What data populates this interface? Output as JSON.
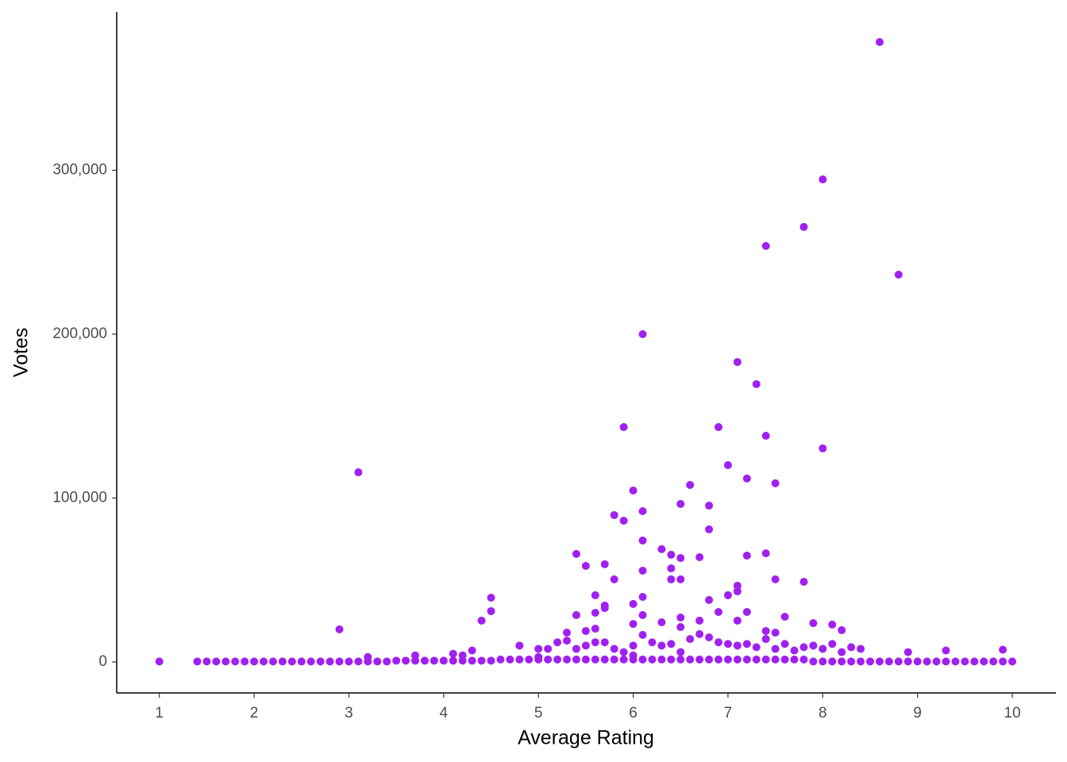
{
  "chart_data": {
    "type": "scatter",
    "xlabel": "Average Rating",
    "ylabel": "Votes",
    "color": "#a020f0",
    "xlim": [
      0.55,
      10.46
    ],
    "ylim": [
      -18900,
      396600
    ],
    "xticks": [
      1,
      2,
      3,
      4,
      5,
      6,
      7,
      8,
      9,
      10
    ],
    "yticks": [
      0,
      {
        "value": 100000,
        "label": "100,000"
      },
      {
        "value": 200000,
        "label": "200,000"
      },
      {
        "value": 300000,
        "label": "300,000"
      }
    ],
    "grid": false,
    "x": [
      8.6,
      8,
      7.8,
      7.4,
      8.8,
      6.1,
      7.1,
      7.3,
      5.9,
      6.9,
      7.4,
      8,
      7,
      3.1,
      7.2,
      7.5,
      6.6,
      6,
      6.5,
      6.8,
      6.1,
      5.8,
      5.9,
      6.8,
      6.1,
      6.3,
      5.4,
      7.4,
      6.4,
      7.2,
      6.7,
      6.5,
      5.7,
      5.5,
      6.4,
      6.1,
      6.4,
      5.8,
      6.5,
      7.5,
      7.8,
      7.1,
      7.1,
      7,
      5.6,
      6.1,
      4.5,
      6.8,
      6,
      5.7,
      5.7,
      4.5,
      6.9,
      7.2,
      5.6,
      6.1,
      5.4,
      6.5,
      7.6,
      6.7,
      4.4,
      7.1,
      6.3,
      6,
      7.9,
      8.1,
      6.5,
      5.6,
      2.9,
      8.2,
      5.5,
      7.4,
      5.3,
      7.5,
      6.1,
      4.1,
      4.2,
      4.3,
      4.8,
      5,
      5.1,
      5.2,
      5.3,
      5.4,
      5.5,
      5.6,
      5.7,
      5.8,
      5.9,
      6,
      6.2,
      6.3,
      6.4,
      6.6,
      6.7,
      6.8,
      6.9,
      7,
      7.1,
      7.2,
      7.3,
      7.4,
      7.5,
      7.6,
      7.7,
      7.8,
      7.9,
      8,
      8.1,
      8.2,
      8.3,
      8.4,
      8.9,
      9.3,
      9.9,
      3.2,
      3.7,
      5,
      6,
      6.5,
      1,
      1.4,
      1.5,
      1.6,
      1.7,
      1.8,
      1.9,
      2,
      2.1,
      2.2,
      2.3,
      2.4,
      2.5,
      2.6,
      2.7,
      2.8,
      2.9,
      3,
      3.1,
      3.2,
      3.3,
      3.4,
      3.5,
      3.6,
      3.7,
      3.8,
      3.9,
      4,
      4.1,
      4.2,
      4.3,
      4.4,
      4.5,
      4.6,
      4.7,
      4.8,
      4.9,
      5,
      5.1,
      5.2,
      5.3,
      5.4,
      5.5,
      5.6,
      5.7,
      5.8,
      5.9,
      6,
      6.1,
      6.2,
      6.3,
      6.4,
      6.5,
      6.6,
      6.7,
      6.8,
      6.9,
      7,
      7.1,
      7.2,
      7.3,
      7.4,
      7.5,
      7.6,
      7.7,
      7.8,
      7.9,
      8,
      8.1,
      8.2,
      8.3,
      8.4,
      8.5,
      8.6,
      8.7,
      8.8,
      8.9,
      9,
      9.1,
      9.2,
      9.3,
      9.4,
      9.5,
      9.6,
      9.7,
      9.8,
      9.9,
      10
    ],
    "values": [
      378200,
      294400,
      265400,
      253800,
      236300,
      200000,
      183000,
      169500,
      143300,
      143300,
      138000,
      130300,
      120100,
      115700,
      111900,
      109000,
      108000,
      104600,
      96400,
      95400,
      92000,
      89600,
      86200,
      80900,
      74100,
      68800,
      65900,
      66300,
      65400,
      64900,
      63900,
      63400,
      59600,
      58600,
      57100,
      55700,
      50400,
      50400,
      50400,
      50400,
      48900,
      46500,
      43100,
      40700,
      40700,
      39700,
      39200,
      37800,
      35400,
      34400,
      32900,
      31000,
      30500,
      30500,
      30000,
      28600,
      28600,
      27100,
      27600,
      25200,
      25200,
      25200,
      24200,
      23200,
      23700,
      22800,
      21300,
      20300,
      19900,
      19400,
      18900,
      18900,
      17900,
      17900,
      16500,
      5000,
      4000,
      7000,
      10000,
      8000,
      8000,
      12000,
      13000,
      8000,
      10000,
      12000,
      12000,
      8000,
      6000,
      10000,
      12000,
      10000,
      11000,
      14000,
      17000,
      15000,
      12000,
      11000,
      10000,
      11000,
      9000,
      14000,
      8000,
      11000,
      7000,
      9000,
      10000,
      8000,
      11000,
      6000,
      9000,
      8000,
      6000,
      7000,
      7500,
      3000,
      4000,
      3000,
      4000,
      6000,
      300,
      300,
      300,
      300,
      300,
      300,
      300,
      300,
      300,
      300,
      300,
      300,
      300,
      300,
      300,
      300,
      300,
      300,
      300,
      300,
      300,
      300,
      800,
      800,
      800,
      800,
      800,
      800,
      800,
      800,
      800,
      800,
      800,
      1500,
      1500,
      1500,
      1500,
      1500,
      1500,
      1500,
      1500,
      1500,
      1500,
      1500,
      1500,
      1500,
      1500,
      1500,
      1500,
      1500,
      1500,
      1500,
      1500,
      1500,
      1500,
      1500,
      1500,
      1500,
      1500,
      1500,
      1500,
      1500,
      1500,
      1500,
      1500,
      1500,
      300,
      300,
      300,
      300,
      300,
      300,
      300,
      300,
      300,
      300,
      300,
      300,
      300,
      300,
      300,
      300,
      300,
      300,
      300,
      300,
      300,
      300
    ]
  }
}
